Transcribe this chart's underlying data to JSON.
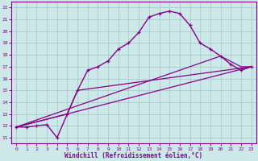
{
  "title": "",
  "xlabel": "Windchill (Refroidissement éolien,°C)",
  "bg_color": "#cce8e8",
  "grid_color": "#aacccc",
  "line_color": "#880088",
  "xlim": [
    -0.5,
    23.5
  ],
  "ylim": [
    10.5,
    22.5
  ],
  "xticks": [
    0,
    1,
    2,
    3,
    4,
    5,
    6,
    7,
    8,
    9,
    10,
    11,
    12,
    13,
    14,
    15,
    16,
    17,
    18,
    19,
    20,
    21,
    22,
    23
  ],
  "yticks": [
    11,
    12,
    13,
    14,
    15,
    16,
    17,
    18,
    19,
    20,
    21,
    22
  ],
  "curve_x": [
    0,
    1,
    2,
    3,
    4,
    5,
    6,
    7,
    8,
    9,
    10,
    11,
    12,
    13,
    14,
    15,
    16,
    17,
    18,
    19,
    20,
    21,
    22,
    23
  ],
  "curve_y": [
    11.9,
    11.9,
    12.0,
    12.1,
    11.0,
    13.0,
    15.0,
    16.7,
    17.0,
    17.5,
    18.5,
    19.0,
    19.9,
    21.2,
    21.5,
    21.7,
    21.5,
    20.5,
    19.0,
    18.5,
    17.9,
    17.2,
    16.7,
    17.0
  ],
  "line1_x": [
    0,
    20,
    22,
    23
  ],
  "line1_y": [
    11.9,
    17.9,
    17.0,
    17.0
  ],
  "line2_x": [
    0,
    23
  ],
  "line2_y": [
    11.9,
    17.0
  ],
  "line3_x": [
    0,
    5,
    6,
    23
  ],
  "line3_y": [
    11.9,
    13.0,
    15.0,
    17.0
  ]
}
